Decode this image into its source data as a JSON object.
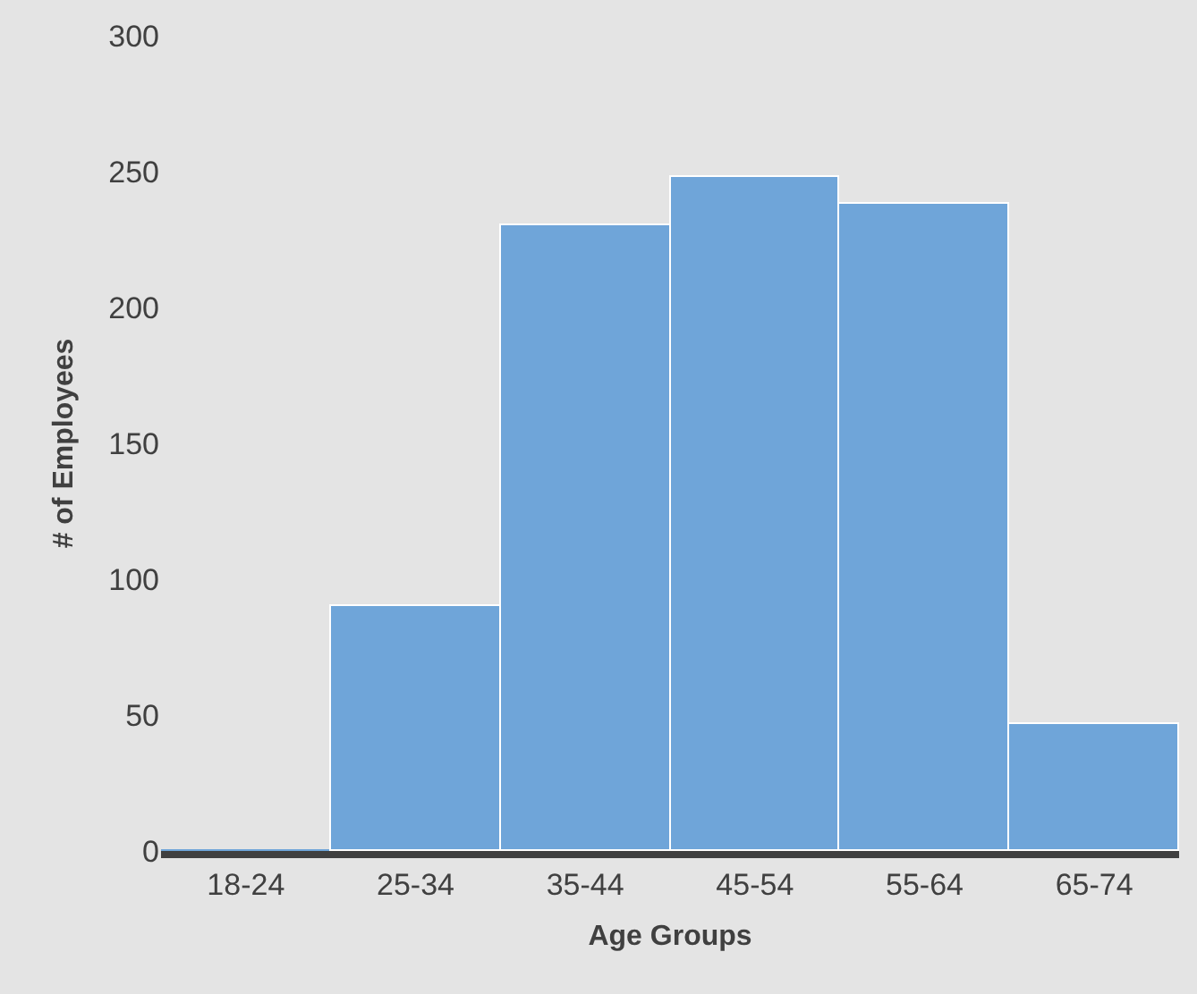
{
  "chart_data": {
    "type": "bar",
    "xlabel": "Age Groups",
    "ylabel": "# of Employees",
    "categories": [
      "18-24",
      "25-34",
      "35-44",
      "45-54",
      "55-64",
      "65-74"
    ],
    "values": [
      0,
      90,
      230,
      248,
      238,
      47
    ],
    "color": "#6fa5d9",
    "ylim": [
      0,
      300
    ],
    "yticks": [
      0,
      50,
      100,
      150,
      200,
      250,
      300
    ],
    "grid": false
  }
}
